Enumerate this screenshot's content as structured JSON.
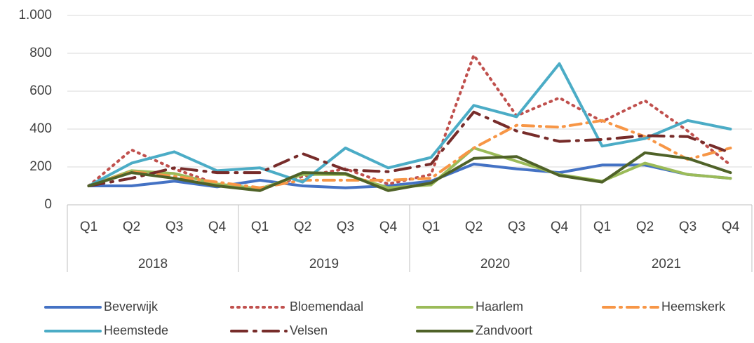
{
  "chart_data": {
    "type": "line",
    "categories": [
      "Q1",
      "Q2",
      "Q3",
      "Q4",
      "Q1",
      "Q2",
      "Q3",
      "Q4",
      "Q1",
      "Q2",
      "Q3",
      "Q4",
      "Q1",
      "Q2",
      "Q3",
      "Q4"
    ],
    "groups": [
      "2018",
      "2019",
      "2020",
      "2021"
    ],
    "ylim": [
      0,
      1000
    ],
    "yticks": [
      0,
      200,
      400,
      600,
      800,
      {
        "value": 1000,
        "label": "1.000"
      }
    ],
    "grid": true,
    "legend": "bottom",
    "series": [
      {
        "name": "Beverwijk",
        "color": "#4472c4",
        "style": "solid",
        "values": [
          100,
          100,
          125,
          95,
          130,
          100,
          90,
          100,
          125,
          215,
          190,
          170,
          210,
          210,
          160,
          140
        ]
      },
      {
        "name": "Bloemendaal",
        "color": "#c0504d",
        "style": "dot",
        "values": [
          100,
          290,
          190,
          110,
          80,
          150,
          190,
          110,
          160,
          790,
          470,
          565,
          440,
          550,
          390,
          210
        ]
      },
      {
        "name": "Haarlem",
        "color": "#9bbb59",
        "style": "solid",
        "values": [
          100,
          180,
          165,
          110,
          85,
          160,
          160,
          90,
          105,
          300,
          230,
          160,
          125,
          220,
          160,
          140
        ]
      },
      {
        "name": "Heemskerk",
        "color": "#f79646",
        "style": "dash-dot",
        "values": [
          100,
          175,
          150,
          120,
          90,
          130,
          130,
          130,
          140,
          300,
          420,
          410,
          445,
          360,
          240,
          300
        ]
      },
      {
        "name": "Heemstede",
        "color": "#4bacc6",
        "style": "solid",
        "values": [
          100,
          220,
          280,
          180,
          195,
          120,
          300,
          195,
          250,
          525,
          465,
          745,
          310,
          350,
          445,
          400
        ]
      },
      {
        "name": "Velsen",
        "color": "#772c2a",
        "style": "long-dash-dot",
        "values": [
          100,
          140,
          195,
          170,
          170,
          270,
          185,
          175,
          215,
          490,
          390,
          335,
          345,
          365,
          360,
          275
        ]
      },
      {
        "name": "Zandvoort",
        "color": "#4f6228",
        "style": "solid",
        "values": [
          100,
          170,
          140,
          100,
          75,
          170,
          165,
          75,
          115,
          245,
          255,
          155,
          120,
          275,
          245,
          170
        ]
      }
    ]
  }
}
